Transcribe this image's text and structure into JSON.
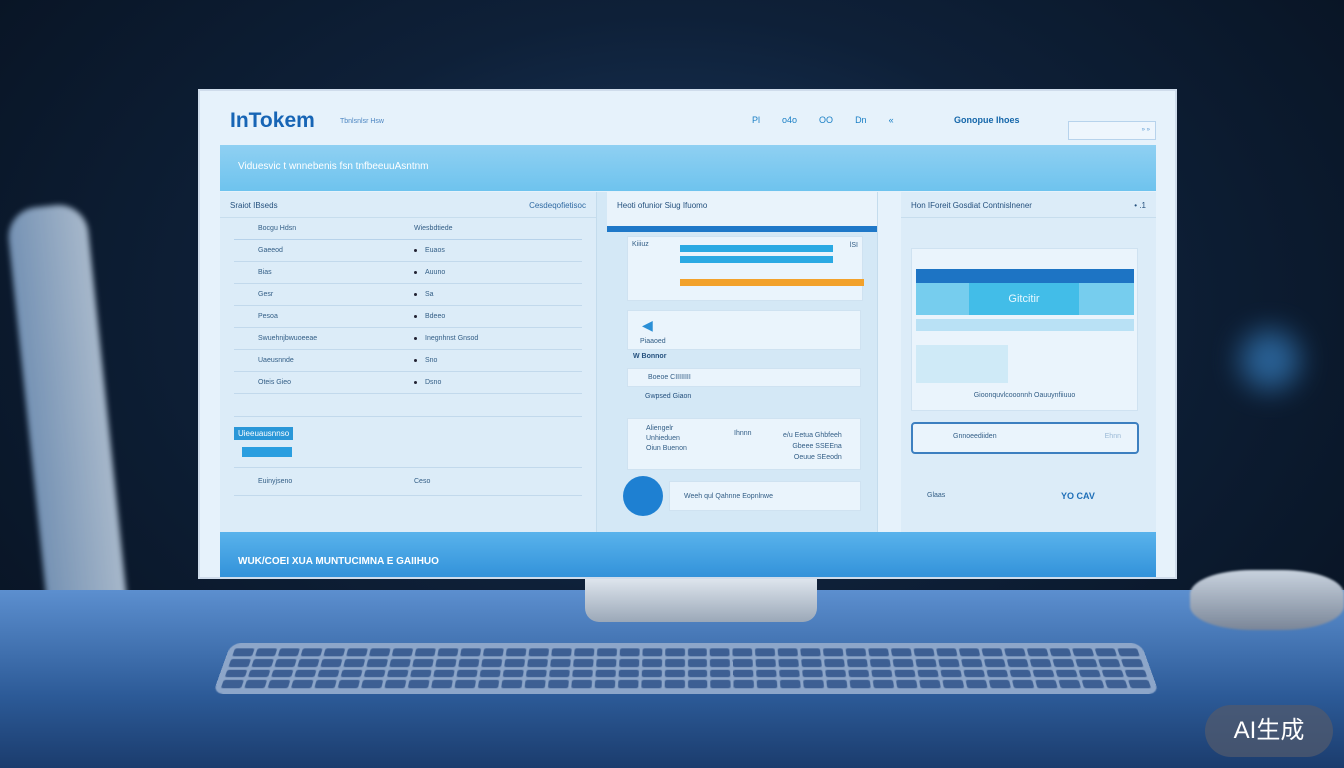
{
  "app": {
    "logo": "InTokem",
    "logo_sub": "Tbnlsnlsr Hsw"
  },
  "header": {
    "nav": [
      "Pl",
      "o4o",
      "OO",
      "Dn",
      "«"
    ],
    "link": "Gonopue Ihoes",
    "search_placeholder": "» »"
  },
  "banner": {
    "text": "Viduesvic t wnnebenis fsn tnfbeeuuAsntnm"
  },
  "left_panel": {
    "title": "Sraiot IBseds",
    "action": "Cesdeqofietisoc",
    "columns": [
      "Bocgu Hdsn",
      "Wiesbdtiede"
    ],
    "rows": [
      [
        "Gaeeod",
        "Euaos"
      ],
      [
        "Bias",
        "Auuno"
      ],
      [
        "Gesr",
        "Sa"
      ],
      [
        "Pesoa",
        "Bdeeo"
      ],
      [
        "Swuehnjbwuoeeae",
        "Inegnhnst Gnsod"
      ],
      [
        "Uaeusnnde",
        "Sno"
      ],
      [
        "Oteis  Gieo",
        "Dsno"
      ]
    ],
    "highlight": "Uieeuausnnso",
    "footer_left": "Euinyjseno",
    "footer_right": "Ceso"
  },
  "middle_panel": {
    "title": "Heoti ofunior Siug Ifuomo",
    "chart_label": "Kiiiuz",
    "bar_end": "lSI",
    "chart_bars": [
      {
        "value": 0.83,
        "color": "#2aa9e3"
      },
      {
        "value": 0.83,
        "color": "#2aa9e3"
      },
      {
        "value": 1.0,
        "color": "#f2a12b"
      }
    ],
    "card_label": "Piaaoed",
    "section": "W Bonnor",
    "input_value": "Boeoe  CIIIIIIII",
    "list_label": "Gwpsed Giaon",
    "info": {
      "l1": "Aliengelr",
      "l2": "Unhieduen",
      "l3": "Oiun Buenon",
      "mid": "Ihnnn",
      "r1": "e/u  Eetua Ghbfeeh",
      "r2": "Gbeee SSEEna",
      "r3": "Oeuue  SEeodn"
    },
    "bottom": "Weeh qul  Qahnne  Eopnlnwe"
  },
  "right_panel": {
    "title": "Hon IForeit Gosdiat Contnislnener",
    "badge": "• .1",
    "tile": "Gitcitir",
    "caption": "Gioonquvlcooonnh Oauuynfiiuuo",
    "field": "Gnnoeediiden",
    "field_hint": "Ehnn",
    "footer_left": "Glaas",
    "footer_right": "YO CAV"
  },
  "footer": {
    "text": "WUK/COEI XUA  MUNTUCIMNA E GAIIHUO"
  },
  "watermark": "AI生成"
}
